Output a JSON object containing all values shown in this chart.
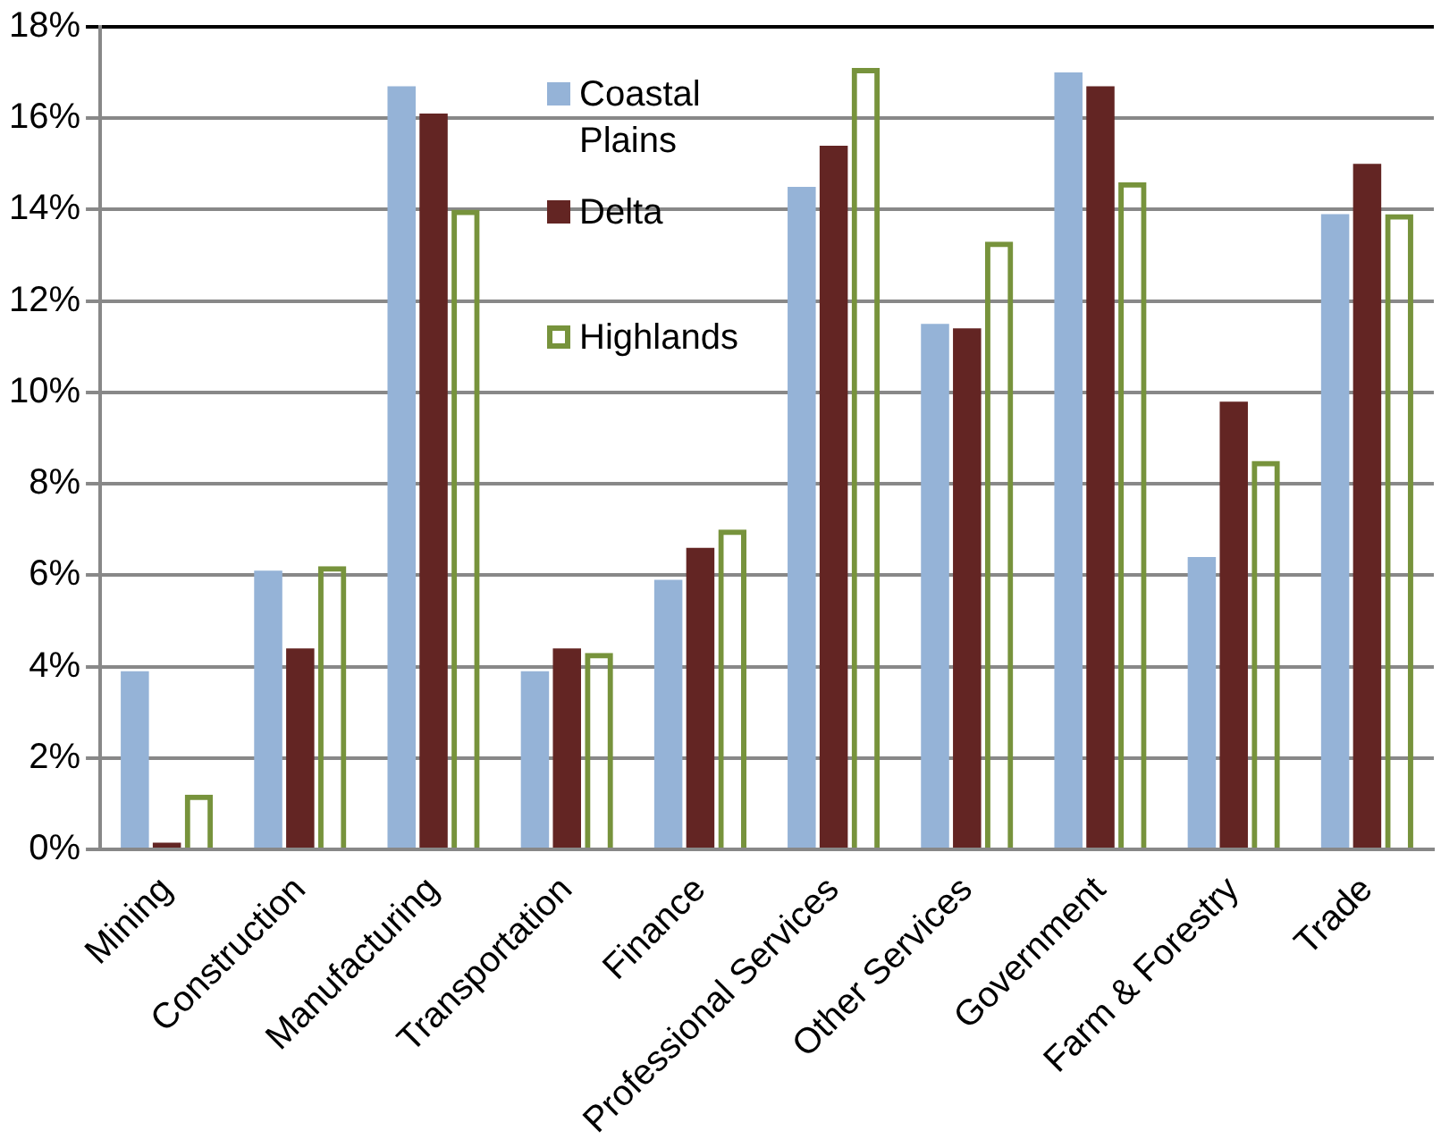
{
  "chart_data": {
    "type": "bar",
    "categories": [
      "Mining",
      "Construction",
      "Manufacturing",
      "Transportation",
      "Finance",
      "Professional Services",
      "Other Services",
      "Government",
      "Farm & Forestry",
      "Trade"
    ],
    "series": [
      {
        "name": "Coastal Plains",
        "color": "#95b3d7",
        "values": [
          3.9,
          6.1,
          16.7,
          3.9,
          5.9,
          14.5,
          11.5,
          17.0,
          6.4,
          13.9
        ]
      },
      {
        "name": "Delta",
        "color": "#632523",
        "values": [
          0.15,
          4.4,
          16.1,
          4.4,
          6.6,
          15.4,
          11.4,
          16.7,
          9.8,
          15.0
        ]
      },
      {
        "name": "Highlands",
        "color": "#77933c",
        "values": [
          1.2,
          6.2,
          14.0,
          4.3,
          7.0,
          17.1,
          13.3,
          14.6,
          8.5,
          13.9
        ]
      }
    ],
    "ylim": [
      0,
      18
    ],
    "yticks": [
      {
        "value": 0,
        "label": "0%"
      },
      {
        "value": 2,
        "label": "2%"
      },
      {
        "value": 4,
        "label": "4%"
      },
      {
        "value": 6,
        "label": "6%"
      },
      {
        "value": 8,
        "label": "8%"
      },
      {
        "value": 10,
        "label": "10%"
      },
      {
        "value": 12,
        "label": "12%"
      },
      {
        "value": 14,
        "label": "14%"
      },
      {
        "value": 16,
        "label": "16%"
      },
      {
        "value": 18,
        "label": "18%"
      }
    ],
    "grid": "y",
    "legend": "top"
  }
}
